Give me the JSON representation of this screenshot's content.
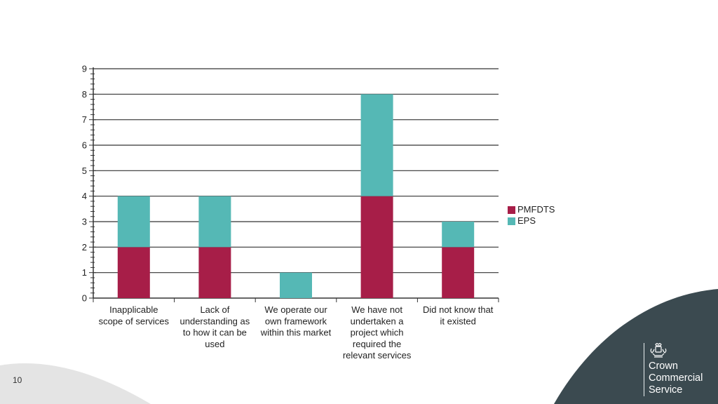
{
  "page_number": "10",
  "brand": {
    "lines": [
      "Crown",
      "Commercial",
      "Service"
    ]
  },
  "colors": {
    "pmfdts": "#a71e48",
    "eps": "#55b8b5",
    "grid": "#333333",
    "bg_grey": "#e4e4e4",
    "bg_dark": "#3b4a50"
  },
  "legend": [
    {
      "name": "PMFDTS",
      "color": "#a71e48"
    },
    {
      "name": "EPS",
      "color": "#55b8b5"
    }
  ],
  "chart_data": {
    "type": "bar",
    "stacked": true,
    "categories": [
      [
        "Inapplicable",
        "scope of services"
      ],
      [
        "Lack of",
        "understanding as",
        "to how it can be",
        "used"
      ],
      [
        "We operate our",
        "own framework",
        "within this market"
      ],
      [
        "We have not",
        "undertaken a",
        "project which",
        "required the",
        "relevant services"
      ],
      [
        "Did not know that",
        "it existed"
      ]
    ],
    "series": [
      {
        "name": "PMFDTS",
        "color": "#a71e48",
        "values": [
          2,
          2,
          0,
          4,
          2
        ]
      },
      {
        "name": "EPS",
        "color": "#55b8b5",
        "values": [
          2,
          2,
          1,
          4,
          1
        ]
      }
    ],
    "ylim": [
      0,
      9
    ],
    "yticks": [
      "0",
      "1",
      "2",
      "3",
      "4",
      "5",
      "6",
      "7",
      "8",
      "9"
    ],
    "grid": true,
    "legend_position": "right"
  }
}
